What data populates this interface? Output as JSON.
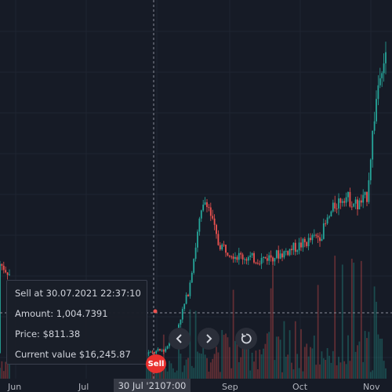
{
  "chart_data": {
    "type": "candlestick",
    "x_ticks": [
      "Jun",
      "Jul",
      "30 Jul '21",
      "07:00",
      "Sep",
      "Oct",
      "Nov"
    ],
    "price_series_approx": [
      [
        "2021-05-25",
        420
      ],
      [
        "2021-06-01",
        380
      ],
      [
        "2021-06-15",
        300
      ],
      [
        "2021-07-01",
        250
      ],
      [
        "2021-07-15",
        220
      ],
      [
        "2021-07-30",
        205
      ],
      [
        "2021-08-05",
        215
      ],
      [
        "2021-08-10",
        260
      ],
      [
        "2021-08-15",
        350
      ],
      [
        "2021-08-20",
        520
      ],
      [
        "2021-08-23",
        580
      ],
      [
        "2021-08-28",
        470
      ],
      [
        "2021-09-05",
        440
      ],
      [
        "2021-09-15",
        430
      ],
      [
        "2021-09-25",
        445
      ],
      [
        "2021-10-05",
        470
      ],
      [
        "2021-10-12",
        490
      ],
      [
        "2021-10-18",
        560
      ],
      [
        "2021-10-22",
        585
      ],
      [
        "2021-10-28",
        560
      ],
      [
        "2021-11-01",
        580
      ],
      [
        "2021-11-04",
        760
      ],
      [
        "2021-11-07",
        900
      ],
      [
        "2021-11-10",
        920
      ]
    ],
    "trade_marker": {
      "type": "Sell",
      "date": "2021-07-30"
    },
    "crosshair": {
      "date_label": "30 Jul '21",
      "time_label": "07:00"
    },
    "colors": {
      "up": "#26a69a",
      "down": "#ef5350",
      "background": "#161b26"
    }
  },
  "tooltip": {
    "line1": "Sell at 30.07.2021 22:37:10",
    "line2": "Amount: 1,004.7391",
    "line3": "Price: $811.38",
    "line4": "Current value $16,245.87"
  },
  "marker_label": "Sell",
  "nav": {
    "prev_icon": "chevron-left-icon",
    "next_icon": "chevron-right-icon",
    "reset_icon": "reset-icon"
  }
}
